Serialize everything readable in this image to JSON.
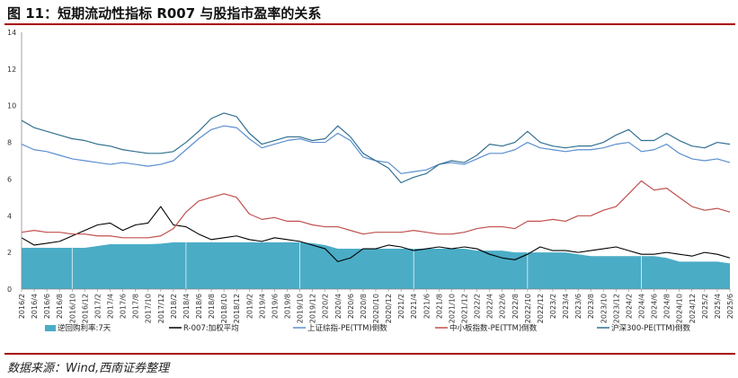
{
  "header": {
    "title": "图 11：短期流动性指标 R007 与股指市盈率的关系"
  },
  "footer": {
    "source": "数据来源：Wind,西南证券整理"
  },
  "chart_data": {
    "type": "line",
    "title": "图 11：短期流动性指标 R007 与股指市盈率的关系",
    "xlabel": "",
    "ylabel": "",
    "ylim": [
      0,
      14
    ],
    "y_ticks": [
      "0",
      "2",
      "4",
      "6",
      "8",
      "10",
      "12",
      "14"
    ],
    "categories": [
      "2016/2",
      "2016/4",
      "2016/6",
      "2016/8",
      "2016/10",
      "2016/12",
      "2017/2",
      "2017/4",
      "2017/6",
      "2017/8",
      "2017/10",
      "2017/12",
      "2018/2",
      "2018/4",
      "2018/6",
      "2018/8",
      "2018/10",
      "2018/12",
      "2019/2",
      "2019/4",
      "2019/6",
      "2019/8",
      "2019/10",
      "2019/12",
      "2020/2",
      "2020/4",
      "2020/6",
      "2020/8",
      "2020/10",
      "2020/12",
      "2021/2",
      "2021/4",
      "2021/6",
      "2021/8",
      "2021/10",
      "2021/12",
      "2022/2",
      "2022/4",
      "2022/6",
      "2022/8",
      "2022/10",
      "2022/12",
      "2023/2",
      "2023/4",
      "2023/6",
      "2023/8",
      "2023/10",
      "2023/12",
      "2024/2",
      "2024/4",
      "2024/6",
      "2024/8",
      "2024/10",
      "2024/12",
      "2025/2",
      "2025/4",
      "2025/6"
    ],
    "legend_position": "bottom",
    "series": [
      {
        "name": "逆回购利率:7天",
        "kind": "area",
        "color": "#4bacc6",
        "values": [
          2.25,
          2.25,
          2.25,
          2.25,
          2.25,
          2.25,
          2.35,
          2.45,
          2.45,
          2.45,
          2.45,
          2.48,
          2.55,
          2.55,
          2.55,
          2.55,
          2.55,
          2.55,
          2.55,
          2.55,
          2.55,
          2.55,
          2.55,
          2.5,
          2.4,
          2.2,
          2.2,
          2.2,
          2.2,
          2.2,
          2.2,
          2.2,
          2.2,
          2.2,
          2.2,
          2.2,
          2.1,
          2.1,
          2.1,
          2.0,
          2.0,
          2.0,
          2.0,
          2.0,
          1.9,
          1.8,
          1.8,
          1.8,
          1.8,
          1.8,
          1.8,
          1.7,
          1.5,
          1.5,
          1.5,
          1.5,
          1.4
        ]
      },
      {
        "name": "R-007:加权平均",
        "kind": "line",
        "color": "#000000",
        "values": [
          2.8,
          2.4,
          2.5,
          2.6,
          2.9,
          3.2,
          3.5,
          3.6,
          3.2,
          3.5,
          3.6,
          4.5,
          3.5,
          3.4,
          3.0,
          2.7,
          2.8,
          2.9,
          2.7,
          2.6,
          2.8,
          2.7,
          2.6,
          2.4,
          2.2,
          1.5,
          1.7,
          2.2,
          2.2,
          2.4,
          2.3,
          2.1,
          2.2,
          2.3,
          2.2,
          2.3,
          2.2,
          1.9,
          1.7,
          1.6,
          1.9,
          2.3,
          2.1,
          2.1,
          2.0,
          2.1,
          2.2,
          2.3,
          2.1,
          1.9,
          1.9,
          2.0,
          1.9,
          1.8,
          2.0,
          1.9,
          1.7
        ]
      },
      {
        "name": "上证综指-PE(TTM)倒数",
        "kind": "line",
        "color": "#5b8fd0",
        "values": [
          7.9,
          7.6,
          7.5,
          7.3,
          7.1,
          7.0,
          6.9,
          6.8,
          6.9,
          6.8,
          6.7,
          6.8,
          7.0,
          7.6,
          8.2,
          8.7,
          8.9,
          8.8,
          8.2,
          7.7,
          7.9,
          8.1,
          8.2,
          8.0,
          8.0,
          8.5,
          8.1,
          7.2,
          7.0,
          6.9,
          6.3,
          6.4,
          6.5,
          6.8,
          6.9,
          6.8,
          7.1,
          7.4,
          7.4,
          7.6,
          8.0,
          7.7,
          7.6,
          7.5,
          7.6,
          7.6,
          7.7,
          7.9,
          8.0,
          7.5,
          7.6,
          7.9,
          7.4,
          7.1,
          7.0,
          7.1,
          6.9
        ]
      },
      {
        "name": "中小板指数-PE(TTM)倒数",
        "kind": "line",
        "color": "#c0504d",
        "values": [
          3.1,
          3.2,
          3.1,
          3.1,
          3.0,
          3.0,
          2.9,
          2.9,
          2.8,
          2.8,
          2.8,
          2.9,
          3.3,
          4.2,
          4.8,
          5.0,
          5.2,
          5.0,
          4.1,
          3.8,
          3.9,
          3.7,
          3.7,
          3.5,
          3.4,
          3.4,
          3.2,
          3.0,
          3.1,
          3.1,
          3.1,
          3.2,
          3.1,
          3.0,
          3.0,
          3.1,
          3.3,
          3.4,
          3.4,
          3.3,
          3.7,
          3.7,
          3.8,
          3.7,
          4.0,
          4.0,
          4.3,
          4.5,
          5.2,
          5.9,
          5.4,
          5.5,
          5.0,
          4.5,
          4.3,
          4.4,
          4.2
        ]
      },
      {
        "name": "沪深300-PE(TTM)倒数",
        "kind": "line",
        "color": "#31708f",
        "values": [
          9.2,
          8.8,
          8.6,
          8.4,
          8.2,
          8.1,
          7.9,
          7.8,
          7.6,
          7.5,
          7.4,
          7.4,
          7.5,
          8.0,
          8.6,
          9.3,
          9.6,
          9.4,
          8.5,
          7.9,
          8.1,
          8.3,
          8.3,
          8.1,
          8.2,
          8.9,
          8.3,
          7.4,
          7.0,
          6.6,
          5.8,
          6.1,
          6.3,
          6.8,
          7.0,
          6.9,
          7.3,
          7.9,
          7.8,
          8.0,
          8.6,
          8.0,
          7.8,
          7.7,
          7.8,
          7.8,
          8.0,
          8.4,
          8.7,
          8.1,
          8.1,
          8.5,
          8.1,
          7.8,
          7.7,
          8.0,
          7.9
        ]
      }
    ]
  }
}
